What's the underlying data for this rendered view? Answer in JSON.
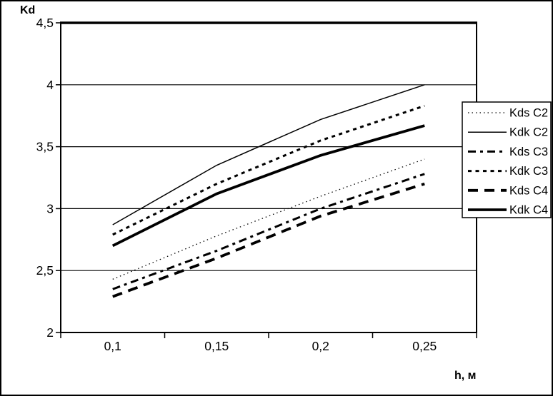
{
  "page": {
    "background": "#ffffff",
    "border_color": "#000000",
    "ink_color": "#000000"
  },
  "chart_data": {
    "type": "line",
    "title": "",
    "y_axis_title": "Kd",
    "x_axis_title": "h, м",
    "categories": [
      "0,1",
      "0,15",
      "0,2",
      "0,25"
    ],
    "x_values": [
      0.1,
      0.15,
      0.2,
      0.25
    ],
    "ylim": [
      2,
      4.5
    ],
    "y_ticks": [
      {
        "label": "4,5",
        "value": 4.5
      },
      {
        "label": "4",
        "value": 4
      },
      {
        "label": "3,5",
        "value": 3.5
      },
      {
        "label": "3",
        "value": 3
      },
      {
        "label": "2,5",
        "value": 2.5
      },
      {
        "label": "2",
        "value": 2
      }
    ],
    "grid": "horizontal gridlines on",
    "legend_position": "right overlay box",
    "line_color": "#000000",
    "series": [
      {
        "name": "Kds C2",
        "style": "dot-thin",
        "values": [
          2.43,
          2.78,
          3.1,
          3.4
        ]
      },
      {
        "name": "Kdk C2",
        "style": "solid-thin",
        "values": [
          2.87,
          3.35,
          3.72,
          4.0
        ]
      },
      {
        "name": "Kds C3",
        "style": "dashdot-thick",
        "values": [
          2.35,
          2.66,
          3.0,
          3.28
        ]
      },
      {
        "name": "Kdk C3",
        "style": "dash-thick",
        "values": [
          2.79,
          3.2,
          3.55,
          3.83
        ]
      },
      {
        "name": "Kds C4",
        "style": "longdash-thick",
        "values": [
          2.29,
          2.6,
          2.94,
          3.2
        ]
      },
      {
        "name": "Kdk C4",
        "style": "solid-thick",
        "values": [
          2.7,
          3.12,
          3.43,
          3.67
        ]
      }
    ]
  }
}
